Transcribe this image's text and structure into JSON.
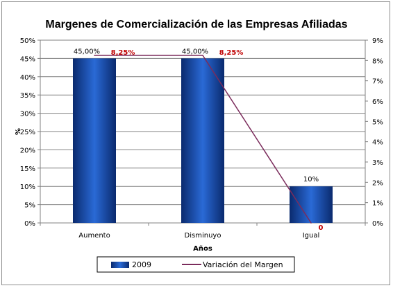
{
  "chart_data": {
    "type": "bar",
    "title": "Margenes de Comercialización de las Empresas Afiliadas",
    "xlabel": "Años",
    "ylabel": "%",
    "categories": [
      "Aumento",
      "Disminuyo",
      "Igual"
    ],
    "ylim": [
      0,
      50
    ],
    "y_ticks": [
      "0%",
      "5%",
      "10%",
      "15%",
      "20%",
      "25%",
      "30%",
      "35%",
      "40%",
      "45%",
      "50%"
    ],
    "y2lim": [
      0,
      9
    ],
    "y2_ticks": [
      "0%",
      "1%",
      "2%",
      "3%",
      "4%",
      "5%",
      "6%",
      "7%",
      "8%",
      "9%"
    ],
    "grid": true,
    "legend_position": "bottom",
    "series": [
      {
        "name": "2009",
        "type": "bar",
        "axis": "left",
        "color": "#1f4e9e",
        "values": [
          45,
          45,
          10
        ],
        "labels": [
          "45,00%",
          "45,00%",
          "10%"
        ]
      },
      {
        "name": "Variación del Margen",
        "type": "line",
        "axis": "right",
        "color": "#7b2c5c",
        "values": [
          8.25,
          8.25,
          0
        ],
        "labels": [
          "8,25%",
          "8,25%",
          "0"
        ]
      }
    ]
  }
}
